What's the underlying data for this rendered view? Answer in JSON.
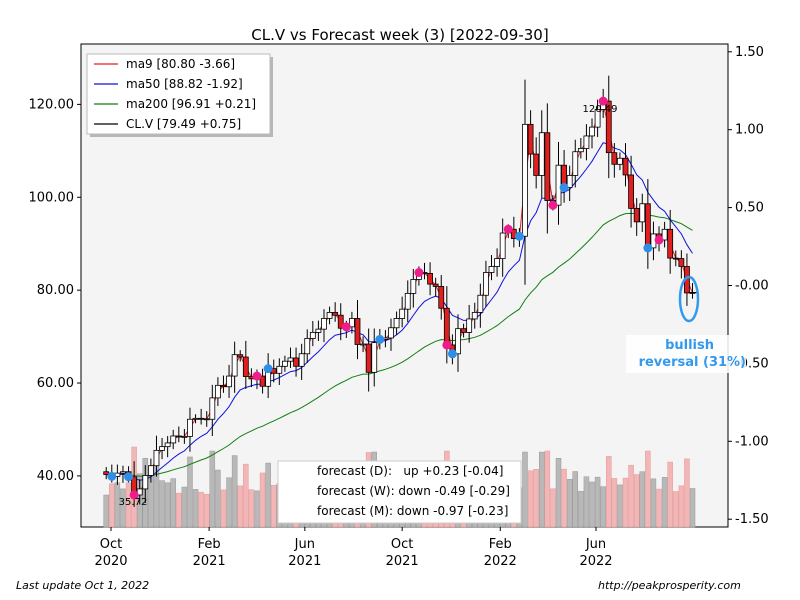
{
  "chart_data": {
    "type": "candlestick",
    "title": "CL.V vs Forecast week (3) [2022-09-30]",
    "left_axis": {
      "ylim": [
        29,
        133
      ],
      "ticks": [
        40,
        60,
        80,
        100,
        120
      ],
      "tick_labels": [
        "40.00",
        "60.00",
        "80.00",
        "100.00",
        "120.00"
      ]
    },
    "right_axis": {
      "ylim": [
        -1.55,
        1.55
      ],
      "ticks": [
        1.5,
        1.0,
        0.5,
        0.0,
        -0.5,
        -1.0,
        -1.5
      ],
      "tick_labels": [
        "1.50",
        "1.00",
        "0.50",
        "-0.00",
        "-0.50",
        "-1.00",
        "-1.50"
      ]
    },
    "x_ticks": [
      {
        "date": "2020-10-01",
        "label1": "Oct",
        "label2": "2020"
      },
      {
        "date": "2021-02-01",
        "label1": "Feb",
        "label2": "2021"
      },
      {
        "date": "2021-06-01",
        "label1": "Jun",
        "label2": "2021"
      },
      {
        "date": "2021-10-01",
        "label1": "Oct",
        "label2": "2021"
      },
      {
        "date": "2022-02-01",
        "label1": "Feb",
        "label2": "2022"
      },
      {
        "date": "2022-06-01",
        "label1": "Jun",
        "label2": "2022"
      }
    ],
    "legend": {
      "placement": "upper-left",
      "entries": [
        {
          "label": "ma9 [80.80 -3.66]",
          "color": "#e02020"
        },
        {
          "label": "ma50 [88.82 -1.92]",
          "color": "#1010e0"
        },
        {
          "label": "ma200 [96.91 +0.21]",
          "color": "#108010"
        },
        {
          "label": "CL.V [79.49 +0.75]",
          "color": "#000000"
        }
      ]
    },
    "forecast_box": {
      "lines": [
        "forecast (D):   up +0.23 [-0.04]",
        "forecast (W): down -0.49 [-0.29]",
        "forecast (M): down -0.97 [-0.23]"
      ]
    },
    "annotations": {
      "high_label": "120.49",
      "low_label": "35.72",
      "signal_text_1": "bullish",
      "signal_text_2": "reversal (31%)"
    },
    "close_series": {
      "weeks": [
        "2020-09-25",
        "2020-10-02",
        "2020-10-09",
        "2020-10-16",
        "2020-10-23",
        "2020-10-30",
        "2020-11-06",
        "2020-11-13",
        "2020-11-20",
        "2020-11-27",
        "2020-12-04",
        "2020-12-11",
        "2020-12-18",
        "2020-12-25",
        "2021-01-01",
        "2021-01-08",
        "2021-01-15",
        "2021-01-22",
        "2021-01-29",
        "2021-02-05",
        "2021-02-12",
        "2021-02-19",
        "2021-02-26",
        "2021-03-05",
        "2021-03-12",
        "2021-03-19",
        "2021-03-26",
        "2021-04-02",
        "2021-04-09",
        "2021-04-16",
        "2021-04-23",
        "2021-04-30",
        "2021-05-07",
        "2021-05-14",
        "2021-05-21",
        "2021-05-28",
        "2021-06-04",
        "2021-06-11",
        "2021-06-18",
        "2021-06-25",
        "2021-07-02",
        "2021-07-09",
        "2021-07-16",
        "2021-07-23",
        "2021-07-30",
        "2021-08-06",
        "2021-08-13",
        "2021-08-20",
        "2021-08-27",
        "2021-09-03",
        "2021-09-10",
        "2021-09-17",
        "2021-09-24",
        "2021-10-01",
        "2021-10-08",
        "2021-10-15",
        "2021-10-22",
        "2021-10-29",
        "2021-11-05",
        "2021-11-12",
        "2021-11-19",
        "2021-11-26",
        "2021-12-03",
        "2021-12-10",
        "2021-12-17",
        "2021-12-24",
        "2021-12-31",
        "2022-01-07",
        "2022-01-14",
        "2022-01-21",
        "2022-01-28",
        "2022-02-04",
        "2022-02-11",
        "2022-02-18",
        "2022-02-25",
        "2022-03-04",
        "2022-03-11",
        "2022-03-18",
        "2022-03-25",
        "2022-04-01",
        "2022-04-08",
        "2022-04-15",
        "2022-04-22",
        "2022-04-29",
        "2022-05-06",
        "2022-05-13",
        "2022-05-20",
        "2022-05-27",
        "2022-06-03",
        "2022-06-10",
        "2022-06-17",
        "2022-06-24",
        "2022-07-01",
        "2022-07-08",
        "2022-07-15",
        "2022-07-22",
        "2022-07-29",
        "2022-08-05",
        "2022-08-12",
        "2022-08-19",
        "2022-08-26",
        "2022-09-02",
        "2022-09-09",
        "2022-09-16",
        "2022-09-23",
        "2022-09-30"
      ],
      "close": [
        40.3,
        39.9,
        40.6,
        40.9,
        39.8,
        35.9,
        37.2,
        40.1,
        42.2,
        45.5,
        46.3,
        47.1,
        48.6,
        48.5,
        48.5,
        52.2,
        52.4,
        52.3,
        52.2,
        56.8,
        59.5,
        59.2,
        61.5,
        66.1,
        65.6,
        61.4,
        60.9,
        61.5,
        59.3,
        63.1,
        62.1,
        63.6,
        64.7,
        65.4,
        63.6,
        66.3,
        69.6,
        70.9,
        71.6,
        73.9,
        75.2,
        74.6,
        71.8,
        72.1,
        73.9,
        68.3,
        68.4,
        62.3,
        68.7,
        69.4,
        69.7,
        71.9,
        73.9,
        75.9,
        79.3,
        82.3,
        83.8,
        83.6,
        81.3,
        80.8,
        76.1,
        68.2,
        66.3,
        71.7,
        70.9,
        73.8,
        75.2,
        78.9,
        83.8,
        85.1,
        86.8,
        92.3,
        93.1,
        91.1,
        91.6,
        115.7,
        109.3,
        104.7,
        113.9,
        99.3,
        98.3,
        106.9,
        102.1,
        104.7,
        109.8,
        110.5,
        113.2,
        115.1,
        118.9,
        120.7,
        109.6,
        107.1,
        108.4,
        104.8,
        97.6,
        94.7,
        98.6,
        89.1,
        92.1,
        90.8,
        93.1,
        86.9,
        86.8,
        85.1,
        79.4,
        79.5
      ],
      "markers_blue": [
        "2020-10-02",
        "2020-10-23",
        "2021-04-16",
        "2021-09-03",
        "2021-12-03",
        "2022-02-25",
        "2022-04-22",
        "2022-08-05"
      ],
      "markers_magenta": [
        "2020-10-30",
        "2021-04-02",
        "2021-07-23",
        "2021-10-22",
        "2021-11-26",
        "2022-02-11",
        "2022-04-08",
        "2022-06-10",
        "2022-08-19"
      ]
    }
  },
  "footer": {
    "last_update": "Last update Oct  1, 2022",
    "source": "http://peakprosperity.com"
  }
}
